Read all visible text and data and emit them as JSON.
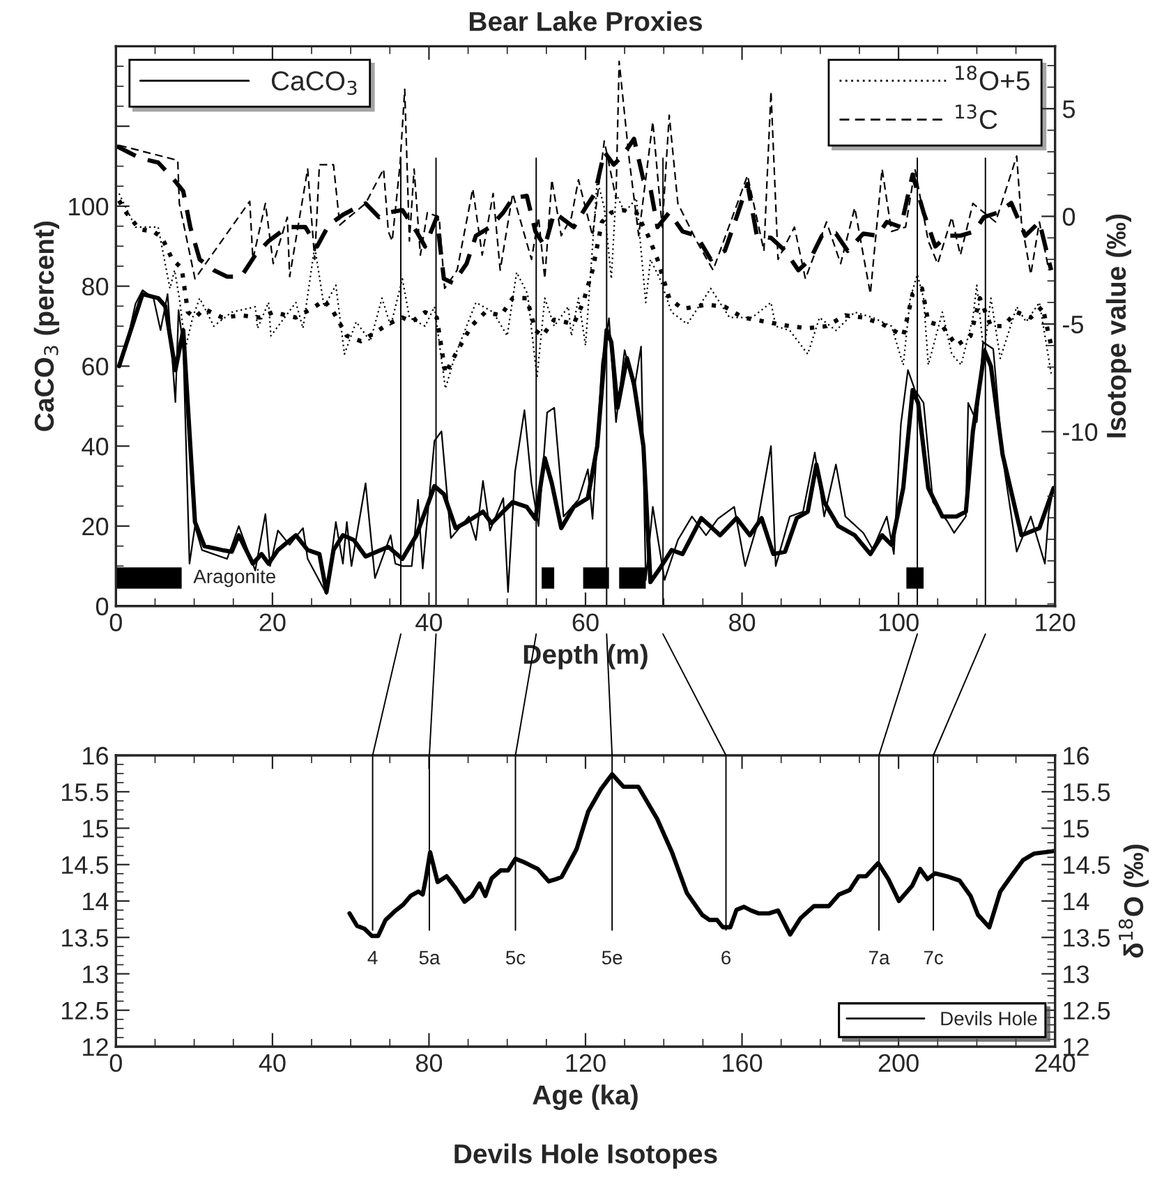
{
  "chart_data": [
    {
      "type": "line",
      "title": "Bear Lake Proxies",
      "xlabel": "Depth (m)",
      "ylabel": "CaCO$_{3}$ (percent)",
      "y2label": "Isotope value (‰)",
      "xlim": [
        0,
        120
      ],
      "xticks": [
        0,
        20,
        40,
        60,
        80,
        100,
        120
      ],
      "ylim": [
        0,
        140
      ],
      "yticks": [
        0,
        20,
        40,
        60,
        80,
        100,
        {
          "value": 120,
          "label": null
        }
      ],
      "y2lim": [
        -18.1,
        7.9
      ],
      "y2ticks": [
        -10,
        -5,
        0,
        5
      ],
      "grid": false,
      "legend": "top left",
      "series": [
        {
          "name": "CaCO$_{3}$",
          "color": "#000000",
          "line_style": "solid",
          "x": [
            0.4,
            1.3,
            2.5,
            3.4,
            4.8,
            5.7,
            6.6,
            7.6,
            8,
            8.6,
            9.4,
            10.1,
            11,
            14.2,
            15.7,
            17.8,
            19.1,
            19.7,
            20.7,
            22.2,
            23.9,
            24.5,
            26.9,
            28.1,
            29,
            29.5,
            30.1,
            31.9,
            33.1,
            35.1,
            35.7,
            36.6,
            37.8,
            38.6,
            39.2,
            40.7,
            41.6,
            42.8,
            45.1,
            46,
            46.9,
            47.8,
            49.5,
            50.1,
            51,
            52.2,
            53.1,
            54,
            55.1,
            56,
            57.2,
            59.1,
            60.3,
            60.9,
            62.1,
            63,
            63.9,
            65,
            66.2,
            67.1,
            67.7,
            68.6,
            70.1,
            71.8,
            73.6,
            75.4,
            76.9,
            79,
            80.4,
            81.9,
            83.7,
            84.3,
            86.1,
            87.8,
            89.3,
            90.5,
            92,
            93.2,
            95.5,
            96.7,
            98.5,
            99.4,
            100.3,
            101.2,
            102.1,
            103.2,
            104.4,
            106.2,
            107.1,
            108.6,
            108.9,
            110,
            110.8,
            112.1,
            113.3,
            115.1,
            116.9,
            118.7,
            119.2,
            119.8
          ],
          "values": [
            60,
            65,
            75.6,
            79,
            77,
            69,
            78,
            51,
            74,
            65,
            10.6,
            20,
            14,
            11.8,
            20,
            8.9,
            23,
            10,
            18.9,
            15.3,
            19.5,
            11.8,
            3,
            21,
            10.6,
            21,
            10,
            30.7,
            7,
            17.7,
            10.6,
            10,
            10,
            26.6,
            9.4,
            41.3,
            43.7,
            17,
            22.4,
            16.5,
            31.3,
            18.9,
            27,
            3.5,
            33.6,
            49,
            30.7,
            20,
            48.4,
            49.6,
            22.4,
            26.6,
            34.2,
            21.8,
            60.8,
            72,
            46,
            64,
            54,
            64.9,
            6.5,
            24.8,
            6.5,
            16.5,
            22.4,
            17.7,
            21.8,
            24.8,
            10,
            20,
            40,
            10,
            22.4,
            23.6,
            38.4,
            22.4,
            35.4,
            22.4,
            18.3,
            14.2,
            22.4,
            13,
            45.5,
            59,
            54,
            50.8,
            26,
            21.3,
            18.3,
            22.4,
            50.8,
            46,
            66,
            64.3,
            37.2,
            13.6,
            22.4,
            10.6,
            23.6,
            29.5
          ]
        },
        {
          "color": "#000000",
          "line_style": "solid",
          "x": [
            0.4,
            3.4,
            5.4,
            6.3,
            7.6,
            8.6,
            10.1,
            11.3,
            13.6,
            14.8,
            15.7,
            17.5,
            18.6,
            19.5,
            20.7,
            23,
            24.5,
            26,
            26.9,
            27.8,
            29,
            30.4,
            31.9,
            34.8,
            36.6,
            38.4,
            40.7,
            41.9,
            43.4,
            44.8,
            46.9,
            48,
            50.7,
            52.5,
            53.6,
            54.8,
            55.7,
            56.9,
            58.5,
            60.3,
            61.5,
            62.7,
            63.3,
            64.1,
            65.3,
            66.2,
            67.4,
            68.3,
            69.5,
            71,
            72.4,
            74.8,
            77.2,
            79.3,
            81,
            82.5,
            84,
            85.5,
            87,
            88.4,
            89.5,
            90.5,
            92.3,
            94.4,
            96.4,
            97.9,
            99.1,
            100.6,
            101.8,
            102.5,
            103.8,
            105.6,
            107.4,
            108.6,
            109.5,
            111,
            111.8,
            113.3,
            115.7,
            118,
            119.8
          ],
          "values": [
            60,
            78,
            77,
            75,
            59,
            69,
            21,
            15,
            14,
            13.6,
            17.7,
            10.6,
            13,
            10.6,
            14,
            17.7,
            14,
            13,
            3.5,
            14,
            17.7,
            16.5,
            12.4,
            14.8,
            11.8,
            17.7,
            30,
            28,
            19.5,
            21,
            23.6,
            20.7,
            26,
            24.8,
            21.8,
            37,
            30.7,
            19.5,
            24.8,
            27,
            40,
            69,
            66,
            49.6,
            62,
            55.5,
            40,
            6,
            9.4,
            14,
            13,
            22,
            17.7,
            22,
            17.7,
            22,
            13,
            13.6,
            22,
            23.6,
            35.4,
            26,
            20,
            17.7,
            13,
            17.7,
            15.3,
            29.5,
            54,
            50.8,
            29.5,
            22.4,
            22.4,
            23.6,
            43.7,
            63.8,
            60,
            37.8,
            17.7,
            19.5,
            29.5
          ]
        },
        {
          "name": "$^{18}$O+5",
          "color": "#000000",
          "line_style": "dotted",
          "axis": "y2",
          "x": [
            0.4,
            2.5,
            5.4,
            6.9,
            7.5,
            8.1,
            8.9,
            9.8,
            10.7,
            12.5,
            14.8,
            17.8,
            18.1,
            19.5,
            19.8,
            23,
            23.9,
            25.4,
            26.6,
            28.1,
            29.2,
            30.7,
            32.5,
            34,
            35.1,
            36.6,
            37.5,
            39.5,
            40.7,
            42.1,
            43.4,
            46,
            48.2,
            50,
            51.2,
            52.6,
            53.8,
            54.8,
            56,
            57.8,
            58.2,
            59.1,
            60,
            61.5,
            62.4,
            63.3,
            63.9,
            65,
            66.5,
            67.7,
            68.3,
            69.5,
            71,
            73,
            76,
            78.4,
            81.3,
            83.7,
            84.3,
            86.1,
            88.4,
            89.9,
            92,
            94.4,
            96.7,
            99.1,
            100.6,
            101.5,
            102.4,
            103.2,
            103.8,
            105.6,
            106.8,
            108,
            109.5,
            110,
            110.9,
            111.8,
            113,
            115.1,
            116.3,
            118,
            119.5
          ],
          "values": [
            1.06,
            -0.5,
            -0.5,
            -3.35,
            -2.5,
            -3.8,
            -6.1,
            -4.7,
            -3.8,
            -5.1,
            -4.45,
            -4.2,
            -5.2,
            -4.0,
            -5.55,
            -4.0,
            -5.2,
            -1.4,
            -4.2,
            -3.2,
            -6.4,
            -4.9,
            -5.8,
            -3.8,
            -5.1,
            -2.9,
            -4.7,
            -5.1,
            -4.2,
            -8.0,
            -6.4,
            -4.0,
            -4.45,
            -5.55,
            -2.6,
            -3.6,
            -7.5,
            -3.8,
            -5.1,
            -4.2,
            -5.55,
            -3.8,
            -6.0,
            1.7,
            0.4,
            -2.9,
            1.06,
            0.18,
            0.84,
            -4.0,
            -2.0,
            -2.9,
            -4.45,
            -5.0,
            -3.35,
            -4.7,
            -4.7,
            -4.0,
            -5.1,
            -5.3,
            -6.4,
            -4.7,
            -5.3,
            -4.45,
            -4.7,
            -5.1,
            -6.9,
            -3.8,
            -2.7,
            -3.8,
            -6.9,
            -4.45,
            -6.4,
            -6.9,
            -4.7,
            -3.2,
            -6.4,
            -3.8,
            -6.6,
            -4.2,
            -4.9,
            -4.0,
            -7.3
          ]
        },
        {
          "color": "#000000",
          "line_style": "dotted",
          "axis": "y2",
          "x": [
            0.4,
            1.3,
            3,
            4.8,
            5.9,
            7.2,
            8.4,
            9.2,
            10.1,
            11.3,
            13.6,
            16,
            18.4,
            20.1,
            23,
            25.4,
            26.6,
            27.8,
            29.5,
            31.3,
            33.1,
            34.8,
            36.6,
            37.8,
            39.5,
            41,
            42.1,
            43.4,
            45.4,
            47.2,
            49.2,
            50.7,
            52.5,
            53.6,
            54.5,
            56,
            58.5,
            59.7,
            60.9,
            62.1,
            63.3,
            64.7,
            66.5,
            68,
            69.2,
            70.7,
            72.4,
            75.4,
            77.8,
            80.1,
            83.1,
            86.1,
            88.4,
            90.8,
            93.2,
            95.5,
            97.9,
            100.6,
            101.8,
            103,
            103.8,
            105.6,
            107.4,
            109.2,
            110.4,
            111.8,
            113.3,
            115.1,
            116.9,
            118.4,
            119.5
          ],
          "values": [
            0.73,
            0.18,
            -0.6,
            -0.7,
            -1.0,
            -2.0,
            -2.4,
            -4.45,
            -4.7,
            -4.3,
            -4.7,
            -4.6,
            -4.7,
            -4.45,
            -4.7,
            -4.2,
            -3.9,
            -4.45,
            -5.55,
            -5.8,
            -5.4,
            -5.0,
            -4.7,
            -4.9,
            -4.45,
            -4.7,
            -7.3,
            -6.4,
            -5.1,
            -4.45,
            -4.6,
            -3.8,
            -3.8,
            -5.3,
            -5.55,
            -4.8,
            -5.0,
            -4.0,
            -2.5,
            -0.26,
            0.18,
            0.29,
            0.18,
            -0.9,
            -2.0,
            -3.8,
            -4.3,
            -4.1,
            -4.2,
            -4.7,
            -4.9,
            -5.1,
            -5.2,
            -5.1,
            -4.6,
            -4.7,
            -5.0,
            -5.55,
            -3.6,
            -3.35,
            -4.9,
            -5.1,
            -6.0,
            -5.55,
            -3.8,
            -5.1,
            -5.1,
            -4.45,
            -4.7,
            -4.2,
            -6.0
          ]
        },
        {
          "name": "$^{13}$C",
          "color": "#000000",
          "line_style": "dashed",
          "axis": "y2",
          "x": [
            0.4,
            7.9,
            8.1,
            10.1,
            17.1,
            17.5,
            19.1,
            20.1,
            21.9,
            22.2,
            24.5,
            25.4,
            26,
            27.8,
            28.6,
            31.9,
            34.2,
            34.8,
            35.3,
            36.3,
            36.9,
            37.5,
            38.1,
            38.9,
            39.8,
            41.3,
            42,
            43.6,
            45.6,
            46.8,
            48.2,
            49.1,
            50.7,
            53.1,
            54,
            54.8,
            55.7,
            56.9,
            58.2,
            59.1,
            60.9,
            62.4,
            63.9,
            64.3,
            65.6,
            66.8,
            68.6,
            69.8,
            70.7,
            71.8,
            74.2,
            76.3,
            80.7,
            82.8,
            83.7,
            84.6,
            86.7,
            88.1,
            90.8,
            92.6,
            94.4,
            96.4,
            97.9,
            99.1,
            100.9,
            102.1,
            103.8,
            105,
            106.8,
            107.9,
            109.5,
            110.9,
            112.4,
            115.1,
            115.7,
            116.9,
            118,
            119.2
          ],
          "values": [
            3.3,
            2.6,
            0.6,
            -2.9,
            0.7,
            -2.0,
            0.6,
            -2.2,
            -0.04,
            -2.8,
            2.2,
            -2.0,
            2.4,
            2.4,
            -0.4,
            0.6,
            2.2,
            -0.7,
            -1.15,
            2.4,
            5.9,
            -1.15,
            2.2,
            -1.8,
            0.18,
            -0.04,
            -3.35,
            -2.5,
            1.28,
            -1.8,
            1.06,
            -2.5,
            1.06,
            -2.0,
            -0.04,
            -2.9,
            1.7,
            -0.9,
            -0.04,
            1.7,
            -0.9,
            3.5,
            0.84,
            7.2,
            2.6,
            -0.9,
            4.4,
            -0.5,
            4.7,
            0.6,
            -1.15,
            -2.5,
            1.9,
            -1.6,
            5.8,
            -2.0,
            -0.5,
            -2.9,
            -0.26,
            -2.2,
            0.4,
            -3.6,
            2.2,
            -0.7,
            -0.5,
            2.2,
            -1.15,
            -2.2,
            -0.04,
            -1.8,
            0.6,
            0.18,
            -0.26,
            2.8,
            -0.26,
            -2.7,
            -0.26,
            -2.5
          ]
        },
        {
          "color": "#000000",
          "line_style": "dashed",
          "axis": "y2",
          "x": [
            0.1,
            3.1,
            5.4,
            7.2,
            8.6,
            9.5,
            10.7,
            12.5,
            14.2,
            16,
            17.8,
            19.5,
            21.9,
            24.2,
            25.7,
            27.2,
            29,
            30.7,
            31.9,
            33.6,
            34.8,
            36.6,
            38.4,
            39.5,
            41,
            41.9,
            43.1,
            44.8,
            46,
            47.8,
            49.5,
            50.7,
            52.5,
            53.6,
            54.8,
            56,
            58.5,
            60,
            61.2,
            62.4,
            63.6,
            64.7,
            66.2,
            67.4,
            68.3,
            69.2,
            70.7,
            72.4,
            74.2,
            76,
            77.8,
            79.3,
            80.7,
            81.9,
            83.7,
            85.5,
            87.2,
            88.7,
            90.2,
            92,
            93.5,
            95.5,
            97.3,
            98.5,
            100.3,
            101.8,
            103.2,
            104.7,
            106.2,
            107.9,
            109.7,
            110.9,
            112.7,
            114.4,
            116.2,
            118,
            119.5
          ],
          "values": [
            3.26,
            2.7,
            2.5,
            1.8,
            1.17,
            -0.5,
            -2.0,
            -2.5,
            -2.8,
            -2.8,
            -1.8,
            -1.15,
            -0.5,
            -0.5,
            -1.4,
            -0.4,
            0.07,
            0.4,
            0.6,
            -0.04,
            0.18,
            0.29,
            -0.7,
            -1.4,
            -0.04,
            -2.9,
            -3.1,
            -2.2,
            -0.9,
            -0.5,
            0.18,
            0.84,
            0.95,
            -0.7,
            -1.4,
            0.18,
            -0.5,
            0.4,
            1.06,
            3.0,
            2.4,
            2.8,
            3.6,
            1.7,
            1.3,
            -0.5,
            0.18,
            -0.7,
            -0.9,
            -2.0,
            -1.6,
            -0.04,
            1.5,
            -0.9,
            -1.0,
            -1.6,
            -2.5,
            -2.0,
            -0.9,
            -0.8,
            -1.6,
            -0.8,
            -0.9,
            -0.26,
            -0.5,
            1.94,
            0.18,
            -1.4,
            -0.9,
            -0.9,
            -0.7,
            -0.04,
            0.18,
            0.62,
            -0.9,
            -0.26,
            -2.5
          ]
        },
        {
          "type": "step",
          "color": "#000000",
          "line_style": "solid",
          "x": [
            0,
            8.4
          ],
          "values": [
            7,
            7
          ]
        },
        {
          "type": "step",
          "color": "#000000",
          "line_style": "solid",
          "x": [
            54.4,
            56
          ],
          "values": [
            7,
            7
          ]
        },
        {
          "type": "step",
          "color": "#000000",
          "line_style": "solid",
          "x": [
            59.7,
            63
          ],
          "values": [
            7,
            7
          ]
        },
        {
          "type": "step",
          "color": "#000000",
          "line_style": "solid",
          "x": [
            64.3,
            67.7
          ],
          "values": [
            7,
            7
          ]
        },
        {
          "type": "step",
          "color": "#000000",
          "line_style": "solid",
          "x": [
            101,
            103.2
          ],
          "values": [
            7,
            7
          ]
        }
      ],
      "annotations": [
        {
          "text": "Aragonite",
          "x": 8.4,
          "y": 7
        }
      ],
      "ref_lines": [
        {
          "axis": "x",
          "value": 36.4
        },
        {
          "axis": "x",
          "value": 40.9
        },
        {
          "axis": "x",
          "value": 53.7
        },
        {
          "axis": "x",
          "value": 62.7
        },
        {
          "axis": "x",
          "value": 69.9
        },
        {
          "axis": "x",
          "value": 102.4
        },
        {
          "axis": "x",
          "value": 111.1
        }
      ]
    },
    {
      "type": "line",
      "title": "Devils Hole Isotopes",
      "xlabel": "Age (ka)",
      "y2label": "δ$^{18}$O (‰)",
      "xlim": [
        0,
        240
      ],
      "xticks": [
        0,
        40,
        80,
        120,
        160,
        200,
        240
      ],
      "ylim": [
        12,
        16
      ],
      "yticks": [
        12,
        12.5,
        13,
        13.5,
        14,
        14.5,
        15,
        15.5,
        16
      ],
      "y2lim": [
        12,
        16
      ],
      "y2ticks": [
        12,
        12.5,
        13,
        13.5,
        14,
        14.5,
        15,
        15.5,
        16
      ],
      "grid": false,
      "legend": "bottom right",
      "series": [
        {
          "name": "Devils Hole",
          "color": "#000000",
          "line_style": "solid",
          "x": [
            59.7,
            61.6,
            63.5,
            65.4,
            67,
            68.9,
            71.5,
            73.4,
            75.3,
            77.3,
            78.4,
            79.2,
            80.3,
            82.2,
            84.5,
            86.8,
            89.1,
            91,
            92.9,
            94.4,
            96,
            98.3,
            100.2,
            102.1,
            104,
            107.8,
            110.6,
            112.5,
            113.9,
            117.7,
            120.7,
            124,
            126.8,
            129.7,
            133.5,
            138.3,
            142.1,
            145.9,
            149.8,
            151.7,
            153.6,
            155.1,
            157,
            158.6,
            160.5,
            162.3,
            164.3,
            166.9,
            169.2,
            172.3,
            174.9,
            178.4,
            182.2,
            184.8,
            187.5,
            189.8,
            191.7,
            194.8,
            197.4,
            200.1,
            203.5,
            205.5,
            207.4,
            209.3,
            212.3,
            215.6,
            218.4,
            220.3,
            223.2,
            226,
            228.9,
            231.8,
            234.6,
            237.5,
            240
          ],
          "values": [
            13.83,
            13.66,
            13.62,
            13.52,
            13.52,
            13.74,
            13.87,
            13.95,
            14.07,
            14.13,
            14.09,
            14.31,
            14.67,
            14.26,
            14.34,
            14.18,
            13.99,
            14.07,
            14.24,
            14.07,
            14.31,
            14.42,
            14.42,
            14.58,
            14.54,
            14.44,
            14.27,
            14.3,
            14.33,
            14.71,
            15.23,
            15.54,
            15.74,
            15.57,
            15.57,
            15.13,
            14.67,
            14.11,
            13.81,
            13.74,
            13.74,
            13.64,
            13.64,
            13.88,
            13.92,
            13.87,
            13.83,
            13.83,
            13.87,
            13.54,
            13.76,
            13.93,
            13.93,
            14.09,
            14.15,
            14.34,
            14.34,
            14.52,
            14.3,
            14.0,
            14.21,
            14.44,
            14.3,
            14.38,
            14.34,
            14.28,
            14.07,
            13.81,
            13.64,
            14.13,
            14.35,
            14.56,
            14.65,
            14.67,
            14.69
          ]
        }
      ],
      "ref_lines": [
        {
          "axis": "x",
          "value": 65.6
        },
        {
          "axis": "x",
          "value": 80.1
        },
        {
          "axis": "x",
          "value": 102.1
        },
        {
          "axis": "x",
          "value": 126.8
        },
        {
          "axis": "x",
          "value": 155.9
        },
        {
          "axis": "x",
          "value": 195
        },
        {
          "axis": "x",
          "value": 208.9
        }
      ],
      "annotations": [
        "4",
        "5a",
        "5c",
        "5e",
        "6",
        "7a",
        "7c"
      ]
    }
  ]
}
